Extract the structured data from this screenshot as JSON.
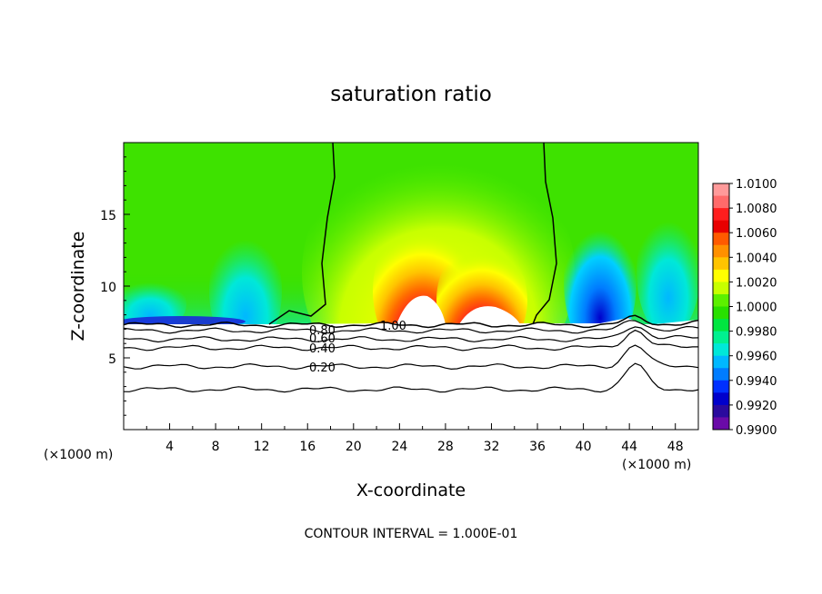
{
  "chart_data": {
    "type": "heatmap",
    "title": "saturation ratio",
    "xlabel": "X-coordinate",
    "ylabel": "Z-coordinate",
    "x_unit_left": "(×1000 m)",
    "x_unit_right": "(×1000 m)",
    "footnote": "CONTOUR INTERVAL = 1.000E-01",
    "xlim": [
      0,
      50
    ],
    "ylim": [
      0,
      20
    ],
    "x_ticks": [
      4,
      8,
      12,
      16,
      20,
      24,
      28,
      32,
      36,
      40,
      44,
      48
    ],
    "y_ticks": [
      5,
      10,
      15
    ],
    "colorbar": {
      "levels": [
        "1.0100",
        "1.0080",
        "1.0060",
        "1.0040",
        "1.0020",
        "1.0000",
        "0.9980",
        "0.9960",
        "0.9940",
        "0.9920",
        "0.9900"
      ],
      "colors": [
        "#ff9a9a",
        "#ff6a6a",
        "#ff1e1e",
        "#e80000",
        "#ff5a00",
        "#ff9000",
        "#ffc400",
        "#ffff00",
        "#c8ff00",
        "#5cf000",
        "#28e000",
        "#00e640",
        "#00f090",
        "#00e8d8",
        "#00b8ff",
        "#007cff",
        "#0030ff",
        "#0000cc",
        "#2a0a9e",
        "#6a0aa8"
      ]
    },
    "contour_labels": [
      "1.00",
      "0.80",
      "0.60",
      "0.40",
      "0.20"
    ],
    "contour_lines": [
      {
        "label": "1.00",
        "level": 1.0,
        "z": 7.3
      },
      {
        "label": "0.80",
        "level": 0.8,
        "z": 6.9
      },
      {
        "label": "0.60",
        "level": 0.6,
        "z": 6.3
      },
      {
        "label": "0.40",
        "level": 0.4,
        "z": 5.7
      },
      {
        "label": "0.20",
        "level": 0.2,
        "z": 4.4
      },
      {
        "label": "",
        "level": 0.1,
        "z": 2.8
      }
    ]
  }
}
